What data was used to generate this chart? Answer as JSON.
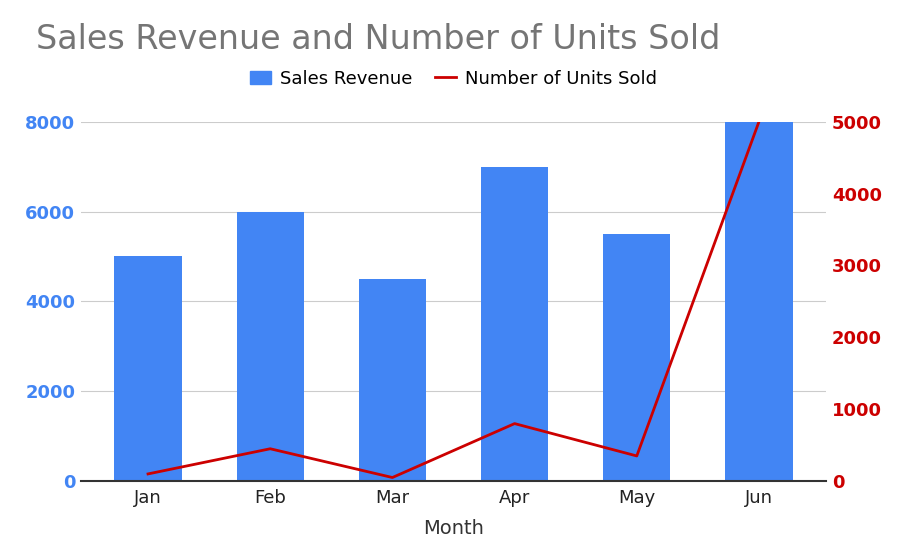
{
  "months": [
    "Jan",
    "Feb",
    "Mar",
    "Apr",
    "May",
    "Jun"
  ],
  "sales_revenue": [
    5000,
    6000,
    4500,
    7000,
    5500,
    8000
  ],
  "units_sold": [
    100,
    450,
    50,
    800,
    350,
    5000
  ],
  "bar_color": "#4285F4",
  "line_color": "#CC0000",
  "left_axis_color": "#4285F4",
  "right_axis_color": "#CC0000",
  "title": "Sales Revenue and Number of Units Sold",
  "title_color": "#757575",
  "xlabel": "Month",
  "ylim_left": [
    0,
    8000
  ],
  "ylim_right": [
    0,
    5000
  ],
  "yticks_left": [
    0,
    2000,
    4000,
    6000,
    8000
  ],
  "yticks_right": [
    0,
    1000,
    2000,
    3000,
    4000,
    5000
  ],
  "background_color": "#ffffff",
  "grid_color": "#cccccc",
  "title_fontsize": 24,
  "tick_fontsize": 13,
  "legend_fontsize": 13,
  "xlabel_fontsize": 14,
  "xtick_color": "#222222",
  "bar_width": 0.55
}
